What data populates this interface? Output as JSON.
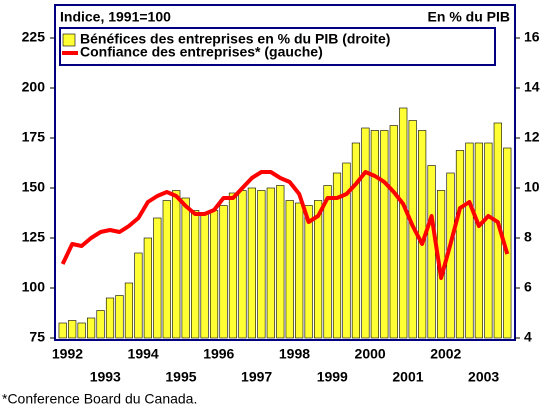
{
  "chart_data": {
    "type": "bar_line",
    "y_label": "Indice, 1991=100",
    "y2_label": "En % du PIB",
    "footnote": "*Conference Board du Canada.",
    "categories": [
      "1992",
      null,
      null,
      null,
      "1993",
      null,
      null,
      null,
      "1994",
      null,
      null,
      null,
      "1995",
      null,
      null,
      null,
      "1996",
      null,
      null,
      null,
      "1997",
      null,
      null,
      null,
      "1998",
      null,
      null,
      null,
      "1999",
      null,
      null,
      null,
      "2000",
      null,
      null,
      null,
      "2001",
      null,
      null,
      null,
      "2002",
      null,
      null,
      null,
      "2003",
      null,
      null,
      null
    ],
    "series": [
      {
        "name": "Bénéfices des entreprises en % du PIB (droite)",
        "type": "bar",
        "axis": "y2",
        "color": "#ffff33",
        "values": [
          4.6,
          4.7,
          4.6,
          4.8,
          5.1,
          5.6,
          5.7,
          6.2,
          7.4,
          8.0,
          8.8,
          9.5,
          9.9,
          9.6,
          9.1,
          9.0,
          9.1,
          9.3,
          9.8,
          9.9,
          10.0,
          9.9,
          10.0,
          10.1,
          9.5,
          9.4,
          9.3,
          9.5,
          10.1,
          10.6,
          11.0,
          11.8,
          12.4,
          12.3,
          12.3,
          12.5,
          13.2,
          12.7,
          12.3,
          10.9,
          9.9,
          10.6,
          11.5,
          11.8,
          11.8,
          11.8,
          12.6,
          11.6
        ]
      },
      {
        "name": "Confiance des entreprises* (gauche)",
        "type": "line",
        "axis": "y",
        "color": "#ff0000",
        "values": [
          112,
          122,
          121,
          125,
          128,
          129,
          128,
          131,
          135,
          143,
          146,
          148,
          146,
          141,
          137,
          137,
          139,
          145,
          145,
          150,
          155,
          158,
          158,
          155,
          153,
          147,
          133,
          136,
          145,
          145,
          147,
          152,
          158,
          156,
          153,
          148,
          142,
          131,
          122,
          136,
          105,
          122,
          140,
          143,
          131,
          136,
          133,
          117
        ]
      }
    ],
    "ylim": [
      75,
      225
    ],
    "yticks": [
      75,
      100,
      125,
      150,
      175,
      200,
      225
    ],
    "y2lim": [
      4,
      16
    ],
    "y2ticks": [
      4,
      6,
      8,
      10,
      12,
      14,
      16
    ]
  }
}
